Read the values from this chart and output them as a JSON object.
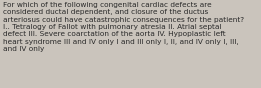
{
  "text": "For which of the following congenital cardiac defects are\nconsidered ductal dependent, and closure of the ductus\narteriosus could have catastrophic consequences for the patient?\nI.. Tetralogy of Fallot with pulmonary atresia II. Atrial septal\ndefect III. Severe coarctation of the aorta IV. Hypoplastic left\nheart syndrome III and IV only I and III only I, II, and IV only I, III,\nand IV only",
  "background_color": "#cac4bc",
  "text_color": "#2a2a2a",
  "font_size": 5.3,
  "fig_width": 2.61,
  "fig_height": 0.88
}
